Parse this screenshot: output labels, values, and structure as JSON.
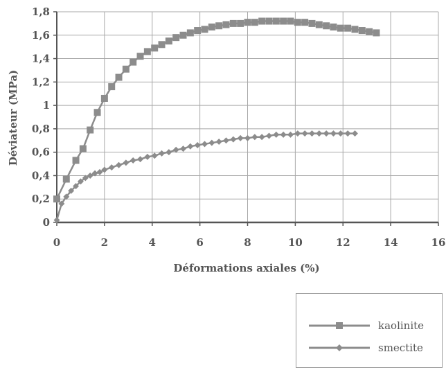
{
  "chart_data": {
    "type": "line",
    "xlabel": "Déformations axiales (%)",
    "ylabel": "Déviateur (MPa)",
    "xlim": [
      0,
      16
    ],
    "ylim": [
      0,
      1.8
    ],
    "x_ticks": [
      "0",
      "2",
      "4",
      "6",
      "8",
      "10",
      "12",
      "14",
      "16"
    ],
    "y_ticks": [
      "0",
      "0,2",
      "0,4",
      "0,6",
      "0,8",
      "1",
      "1,2",
      "1,4",
      "1,6",
      "1,8"
    ],
    "grid": true,
    "legend_position": "bottom-right",
    "series": [
      {
        "name": "kaolinite",
        "marker": "square",
        "x": [
          0,
          0.4,
          0.8,
          1.1,
          1.4,
          1.7,
          2.0,
          2.3,
          2.6,
          2.9,
          3.2,
          3.5,
          3.8,
          4.1,
          4.4,
          4.7,
          5.0,
          5.3,
          5.6,
          5.9,
          6.2,
          6.5,
          6.8,
          7.1,
          7.4,
          7.7,
          8.0,
          8.3,
          8.6,
          8.9,
          9.2,
          9.5,
          9.8,
          10.1,
          10.4,
          10.7,
          11.0,
          11.3,
          11.6,
          11.9,
          12.2,
          12.5,
          12.8,
          13.1,
          13.4
        ],
        "y": [
          0.2,
          0.37,
          0.53,
          0.63,
          0.79,
          0.94,
          1.06,
          1.16,
          1.24,
          1.31,
          1.37,
          1.42,
          1.46,
          1.49,
          1.52,
          1.55,
          1.58,
          1.6,
          1.62,
          1.64,
          1.65,
          1.67,
          1.68,
          1.69,
          1.7,
          1.7,
          1.71,
          1.71,
          1.72,
          1.72,
          1.72,
          1.72,
          1.72,
          1.71,
          1.71,
          1.7,
          1.69,
          1.68,
          1.67,
          1.66,
          1.66,
          1.65,
          1.64,
          1.63,
          1.62
        ]
      },
      {
        "name": "smectite",
        "marker": "diamond",
        "x": [
          0,
          0.2,
          0.4,
          0.6,
          0.8,
          1.0,
          1.2,
          1.4,
          1.6,
          1.8,
          2.0,
          2.3,
          2.6,
          2.9,
          3.2,
          3.5,
          3.8,
          4.1,
          4.4,
          4.7,
          5.0,
          5.3,
          5.6,
          5.9,
          6.2,
          6.5,
          6.8,
          7.1,
          7.4,
          7.7,
          8.0,
          8.3,
          8.6,
          8.9,
          9.2,
          9.5,
          9.8,
          10.1,
          10.4,
          10.7,
          11.0,
          11.3,
          11.6,
          11.9,
          12.2,
          12.5
        ],
        "y": [
          0.02,
          0.16,
          0.22,
          0.27,
          0.31,
          0.35,
          0.38,
          0.4,
          0.42,
          0.43,
          0.45,
          0.47,
          0.49,
          0.51,
          0.53,
          0.54,
          0.56,
          0.57,
          0.59,
          0.6,
          0.62,
          0.63,
          0.65,
          0.66,
          0.67,
          0.68,
          0.69,
          0.7,
          0.71,
          0.72,
          0.72,
          0.73,
          0.73,
          0.74,
          0.75,
          0.75,
          0.75,
          0.76,
          0.76,
          0.76,
          0.76,
          0.76,
          0.76,
          0.76,
          0.76,
          0.76
        ]
      }
    ]
  },
  "colors": {
    "axis": "#555555",
    "grid": "#a8a8a8",
    "series": "#8c8c8c"
  }
}
